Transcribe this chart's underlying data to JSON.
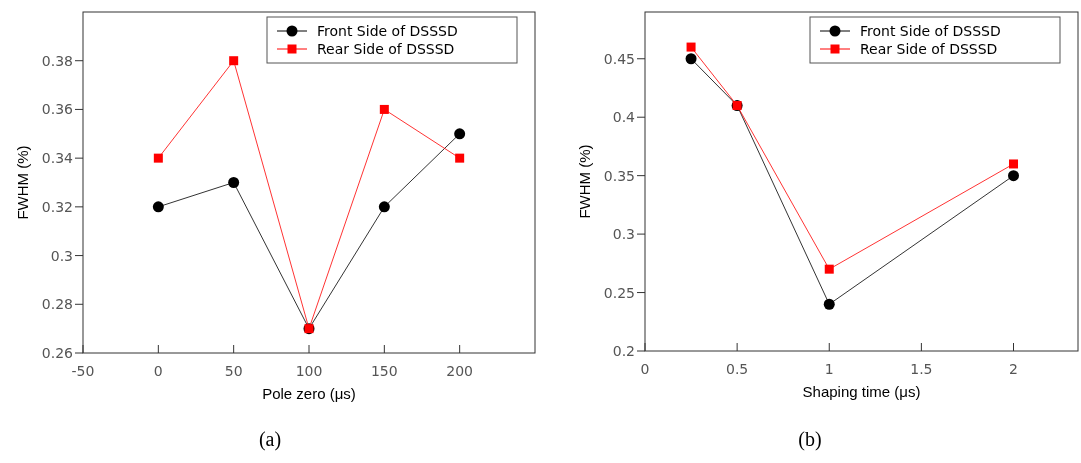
{
  "chart_data": [
    {
      "type": "line",
      "xlabel": "Pole zero (μs)",
      "ylabel": "FWHM (%)",
      "x": [
        0,
        50,
        100,
        150,
        200
      ],
      "xlim": [
        -50,
        250
      ],
      "xticks": [
        -50,
        0,
        50,
        100,
        150,
        200
      ],
      "ylim": [
        0.26,
        0.4
      ],
      "yticks": [
        0.26,
        0.28,
        {
          "value": 0.3,
          "label": "0.3"
        },
        0.32,
        0.34,
        0.36,
        0.38
      ],
      "legend": "top right",
      "annotations": [
        "(a)"
      ],
      "series": [
        {
          "name": "Front Side of DSSSD",
          "color": "#000000",
          "marker": "circle",
          "values": [
            0.32,
            0.33,
            0.27,
            0.32,
            0.35
          ]
        },
        {
          "name": "Rear Side of DSSSD",
          "color": "#ff0000",
          "marker": "square",
          "values": [
            0.34,
            0.38,
            0.27,
            0.36,
            0.34
          ]
        }
      ]
    },
    {
      "type": "line",
      "xlabel": "Shaping time (μs)",
      "ylabel": "FWHM (%)",
      "x": [
        0.25,
        0.5,
        1,
        2
      ],
      "xlim": [
        0,
        2.35
      ],
      "xticks": [
        0,
        0.5,
        1,
        1.5,
        2
      ],
      "ylim": [
        0.2,
        0.49
      ],
      "yticks": [
        0.2,
        0.25,
        0.3,
        0.35,
        0.4,
        0.45
      ],
      "legend": "top right",
      "annotations": [
        "(b)"
      ],
      "series": [
        {
          "name": "Front Side of DSSSD",
          "color": "#000000",
          "marker": "circle",
          "values": [
            0.45,
            0.41,
            0.24,
            0.35
          ]
        },
        {
          "name": "Rear Side of DSSSD",
          "color": "#ff0000",
          "marker": "square",
          "values": [
            0.46,
            0.41,
            0.27,
            0.36
          ]
        }
      ]
    }
  ]
}
